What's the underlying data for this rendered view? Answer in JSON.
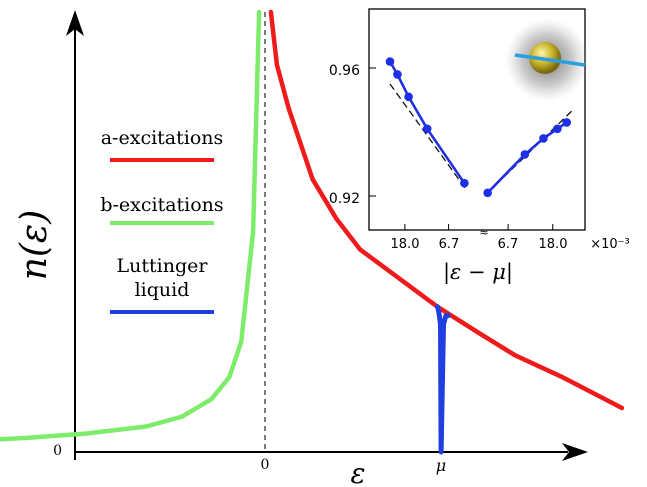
{
  "chart_data": [
    {
      "type": "line",
      "ylabel": "n(ε)",
      "xlabel": "ε",
      "x_ticks": [
        "0",
        "μ"
      ],
      "y_ticks": [
        "0"
      ],
      "legend": [
        {
          "name": "a-excitations",
          "color": "#ef1a1a"
        },
        {
          "name": "b-excitations",
          "color": "#7eec6b"
        },
        {
          "name": "Luttinger liquid",
          "lines": [
            "Luttinger",
            "liquid"
          ],
          "color": "#1f3fe0"
        }
      ],
      "series": [
        {
          "name": "b-excitations",
          "x": [
            -3.1,
            -2.5,
            -2.0,
            -1.5,
            -1.0,
            -0.7,
            -0.45,
            -0.3,
            -0.2,
            -0.1,
            -0.05
          ],
          "y": [
            0.02,
            0.025,
            0.032,
            0.042,
            0.058,
            0.08,
            0.12,
            0.17,
            0.25,
            0.5,
            1.0
          ]
        },
        {
          "name": "a-excitations",
          "x": [
            0.05,
            0.1,
            0.2,
            0.4,
            0.6,
            0.8,
            1.0,
            1.2,
            1.45,
            1.8,
            2.1,
            2.5,
            3.0
          ],
          "y": [
            1.0,
            0.88,
            0.78,
            0.62,
            0.53,
            0.46,
            0.42,
            0.38,
            0.33,
            0.27,
            0.22,
            0.17,
            0.1
          ]
        },
        {
          "name": "Luttinger liquid",
          "x": [
            1.45,
            1.46,
            1.475,
            1.48,
            1.5,
            1.52,
            1.54
          ],
          "y": [
            0.33,
            0.32,
            0.29,
            0.0,
            0.29,
            0.31,
            0.31
          ]
        }
      ],
      "marker": {
        "x": 0,
        "style": "dashed"
      },
      "mu": 1.48
    },
    {
      "type": "line",
      "xlabel": "|ε − μ|",
      "x_ticks_left": [
        "18.0",
        "6.7"
      ],
      "x_ticks_right": [
        "6.7",
        "18.0"
      ],
      "x_exponent": "×10⁻³",
      "y_ticks": [
        "0.96",
        "0.92"
      ],
      "ylim": [
        0.908,
        0.977
      ],
      "series": [
        {
          "name": "left",
          "x": [
            -1.0,
            -0.92,
            -0.8,
            -0.6,
            -0.2
          ],
          "y": [
            0.962,
            0.958,
            0.951,
            0.941,
            0.924
          ]
        },
        {
          "name": "right",
          "x": [
            0.05,
            0.45,
            0.65,
            0.8,
            0.9
          ],
          "y": [
            0.921,
            0.933,
            0.938,
            0.941,
            0.943
          ]
        }
      ],
      "fits": [
        {
          "x": [
            -1.0,
            -0.18
          ],
          "y": [
            0.955,
            0.922
          ]
        },
        {
          "x": [
            0.05,
            0.97
          ],
          "y": [
            0.921,
            0.947
          ]
        }
      ]
    }
  ]
}
